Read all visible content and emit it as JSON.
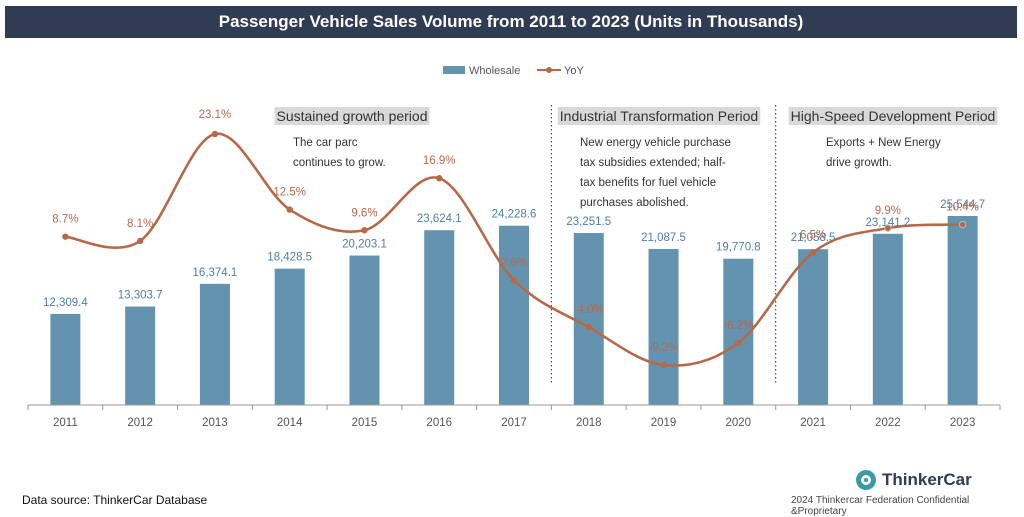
{
  "chart_data": {
    "type": "bar",
    "title": "Passenger Vehicle Sales Volume from 2011 to 2023 (Units in Thousands)",
    "categories": [
      "2011",
      "2012",
      "2013",
      "2014",
      "2015",
      "2016",
      "2017",
      "2018",
      "2019",
      "2020",
      "2021",
      "2022",
      "2023"
    ],
    "series": [
      {
        "name": "Wholesale",
        "type": "bar",
        "values": [
          12309.4,
          13303.7,
          16374.1,
          18428.5,
          20203.1,
          23624.1,
          24228.6,
          23251.5,
          21087.5,
          19770.8,
          21058.5,
          23141.2,
          25544.7
        ],
        "labels": [
          "12,309.4",
          "13,303.7",
          "16,374.1",
          "18,428.5",
          "20,203.1",
          "23,624.1",
          "24,228.6",
          "23,251.5",
          "21,087.5",
          "19,770.8",
          "21,058.5",
          "23,141.2",
          "25,544.7"
        ],
        "color": "#6493b0"
      },
      {
        "name": "YoY",
        "type": "line",
        "values": [
          8.7,
          8.1,
          23.1,
          12.5,
          9.6,
          16.9,
          2.6,
          -4.0,
          -9.3,
          -6.2,
          6.5,
          9.9,
          10.4
        ],
        "labels": [
          "8.7%",
          "8.1%",
          "23.1%",
          "12.5%",
          "9.6%",
          "16.9%",
          "2.6%",
          "-4.0%",
          "-9.3%",
          "-6.2%",
          "6.5%",
          "9.9%",
          "10.4%"
        ],
        "color": "#b5694a"
      }
    ],
    "bar_ylim": [
      0,
      30000
    ],
    "line_ylim": [
      -13,
      30
    ],
    "legend_position": "top-center",
    "periods": [
      {
        "title": "Sustained growth period",
        "note": [
          "The car parc",
          "continues to grow."
        ],
        "start_index": 0,
        "end_index": 6
      },
      {
        "title": "Industrial Transformation Period",
        "note": [
          "New energy vehicle purchase",
          "tax subsidies extended; half-",
          "tax benefits for fuel vehicle",
          "purchases abolished."
        ],
        "start_index": 7,
        "end_index": 9
      },
      {
        "title": "High-Speed Development Period",
        "note": [
          "Exports + New Energy",
          "drive growth."
        ],
        "start_index": 10,
        "end_index": 12
      }
    ]
  },
  "footer": {
    "source": "Data source: ThinkerCar Database",
    "brand": "ThinkerCar",
    "confidential": "2024 Thinkercar Federation Confidential &Proprietary"
  },
  "colors": {
    "title_bg": "#2f3c53",
    "bar": "#6493b0",
    "line": "#b5694a",
    "bar_label": "#4f7fa3",
    "line_label": "#b5694a",
    "period_title_bg": "#d9d9d9"
  }
}
